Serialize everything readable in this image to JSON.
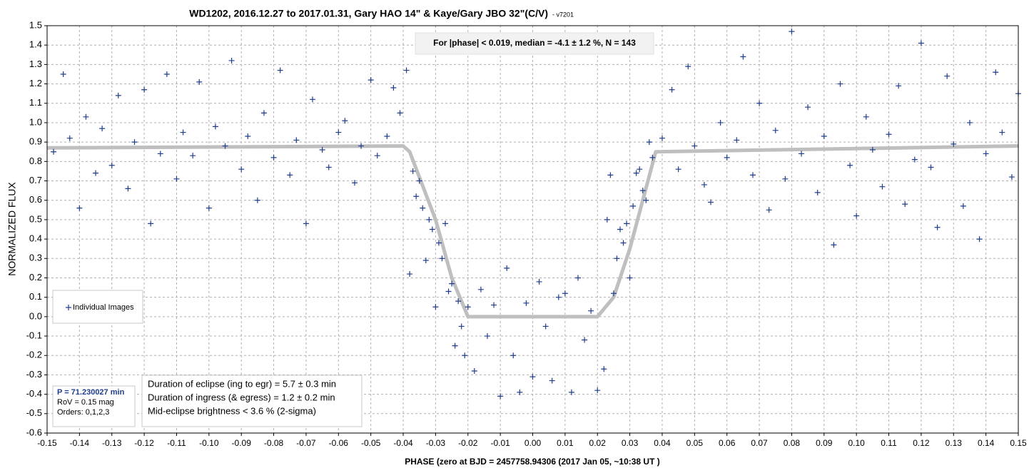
{
  "chart_data": {
    "type": "scatter",
    "title": "WD1202, 2016.12.27 to 2017.01.31, Gary HAO 14\" & Kaye/Gary JBO 32\"(C/V)",
    "subtitle": "- v7201",
    "x_label": "PHASE (zero  at  BJD =  2457758.94306 (2017 Jan 05, ~10:38 UT )",
    "y_label": "NORMALIZED FLUX",
    "xlim": [
      -0.15,
      0.15
    ],
    "ylim": [
      -0.6,
      1.5
    ],
    "xticks": [
      -0.15,
      -0.14,
      -0.13,
      -0.12,
      -0.11,
      {
        "value": -0.1,
        "label": "-0.10"
      },
      -0.09,
      -0.08,
      -0.07,
      -0.06,
      -0.05,
      -0.04,
      -0.03,
      -0.02,
      -0.01,
      {
        "value": 0,
        "label": "0.00"
      },
      0.01,
      0.02,
      0.03,
      0.04,
      0.05,
      0.06,
      0.07,
      0.08,
      0.09,
      {
        "value": 0.1,
        "label": "0.10"
      },
      0.11,
      0.12,
      0.13,
      0.14,
      0.15
    ],
    "yticks": [
      -0.6,
      -0.5,
      -0.4,
      -0.3,
      -0.2,
      -0.1,
      {
        "value": 0,
        "label": "0.0"
      },
      0.1,
      0.2,
      0.3,
      0.4,
      0.5,
      0.6,
      0.7,
      0.8,
      0.9,
      {
        "value": 1,
        "label": "1.0"
      },
      1.1,
      1.2,
      1.3,
      1.4,
      1.5
    ],
    "grid": true,
    "series": [
      {
        "name": "Individual Images",
        "color": "#1f3d8c",
        "x": [
          -0.148,
          -0.145,
          -0.143,
          -0.14,
          -0.138,
          -0.135,
          -0.133,
          -0.13,
          -0.128,
          -0.125,
          -0.123,
          -0.12,
          -0.118,
          -0.115,
          -0.113,
          -0.11,
          -0.108,
          -0.105,
          -0.103,
          -0.1,
          -0.098,
          -0.095,
          -0.093,
          -0.09,
          -0.088,
          -0.085,
          -0.083,
          -0.08,
          -0.078,
          -0.075,
          -0.073,
          -0.07,
          -0.068,
          -0.065,
          -0.063,
          -0.06,
          -0.058,
          -0.055,
          -0.053,
          -0.05,
          -0.048,
          -0.045,
          -0.043,
          -0.041,
          -0.039,
          -0.038,
          -0.037,
          -0.036,
          -0.035,
          -0.034,
          -0.033,
          -0.032,
          -0.031,
          -0.03,
          -0.029,
          -0.028,
          -0.027,
          -0.026,
          -0.025,
          -0.024,
          -0.023,
          -0.022,
          -0.021,
          -0.02,
          -0.018,
          -0.016,
          -0.014,
          -0.012,
          -0.01,
          -0.008,
          -0.006,
          -0.004,
          -0.002,
          0.0,
          0.002,
          0.004,
          0.006,
          0.008,
          0.01,
          0.012,
          0.014,
          0.016,
          0.018,
          0.02,
          0.022,
          0.023,
          0.024,
          0.025,
          0.026,
          0.027,
          0.028,
          0.029,
          0.03,
          0.031,
          0.032,
          0.033,
          0.034,
          0.035,
          0.036,
          0.037,
          0.04,
          0.043,
          0.045,
          0.048,
          0.05,
          0.053,
          0.055,
          0.058,
          0.06,
          0.063,
          0.065,
          0.068,
          0.07,
          0.073,
          0.075,
          0.078,
          0.08,
          0.083,
          0.085,
          0.088,
          0.09,
          0.093,
          0.095,
          0.098,
          0.1,
          0.103,
          0.105,
          0.108,
          0.11,
          0.113,
          0.115,
          0.118,
          0.12,
          0.123,
          0.125,
          0.128,
          0.13,
          0.133,
          0.135,
          0.138,
          0.14,
          0.143,
          0.145,
          0.148,
          0.15
        ],
        "values": [
          0.85,
          1.25,
          0.92,
          0.56,
          1.03,
          0.74,
          0.97,
          0.78,
          1.14,
          0.66,
          0.9,
          1.17,
          0.48,
          0.84,
          1.25,
          0.71,
          0.95,
          0.83,
          1.21,
          0.56,
          0.98,
          0.88,
          1.32,
          0.76,
          0.93,
          0.6,
          1.05,
          0.82,
          1.27,
          0.73,
          0.91,
          0.48,
          1.12,
          0.86,
          0.77,
          0.95,
          1.01,
          0.69,
          0.88,
          1.22,
          0.83,
          0.93,
          1.18,
          1.05,
          1.27,
          0.22,
          0.75,
          0.62,
          0.7,
          0.56,
          0.29,
          0.5,
          0.45,
          0.05,
          0.38,
          0.3,
          0.48,
          0.13,
          0.17,
          -0.15,
          0.08,
          -0.05,
          -0.2,
          0.05,
          -0.28,
          0.14,
          -0.1,
          0.06,
          -0.41,
          0.25,
          -0.2,
          -0.39,
          0.07,
          -0.31,
          0.18,
          -0.05,
          -0.33,
          0.1,
          0.12,
          -0.39,
          0.2,
          -0.12,
          0.03,
          -0.38,
          -0.27,
          0.5,
          0.73,
          0.12,
          0.3,
          0.45,
          0.38,
          0.48,
          0.2,
          0.57,
          0.74,
          0.76,
          0.65,
          0.6,
          0.9,
          0.82,
          0.92,
          1.17,
          0.76,
          1.29,
          0.88,
          0.68,
          0.59,
          1.0,
          0.82,
          0.91,
          1.34,
          0.73,
          1.1,
          0.55,
          0.96,
          0.71,
          1.47,
          0.84,
          1.08,
          0.64,
          0.93,
          0.37,
          1.2,
          0.78,
          0.52,
          1.03,
          0.86,
          0.67,
          0.94,
          1.19,
          0.58,
          0.81,
          1.41,
          0.77,
          0.46,
          1.24,
          0.89,
          0.57,
          1.0,
          0.4,
          0.84,
          1.26,
          0.95,
          0.72,
          1.15
        ]
      }
    ],
    "fit": {
      "color": "#bfbfbf",
      "x": [
        -0.15,
        -0.04,
        -0.038,
        -0.03,
        -0.025,
        -0.02,
        0.02,
        0.025,
        0.03,
        0.038,
        0.15
      ],
      "values": [
        0.87,
        0.88,
        0.85,
        0.5,
        0.2,
        0,
        0,
        0.1,
        0.35,
        0.85,
        0.88
      ]
    },
    "annotations": {
      "median": "For |phase| < 0.019, median = -4.1 ± 1.2 %, N = 143",
      "period": [
        "P = 71.230027 min",
        "RoV = 0.15 mag",
        "Orders: 0,1,2,3"
      ],
      "duration": [
        "Duration of eclipse  (ing to egr) = 5.7 ± 0.3 min",
        "Duration of ingress (& egress)   = 1.2 ± 0.2 min",
        "Mid-eclipse brightness < 3.6 % (2-sigma)"
      ]
    }
  }
}
